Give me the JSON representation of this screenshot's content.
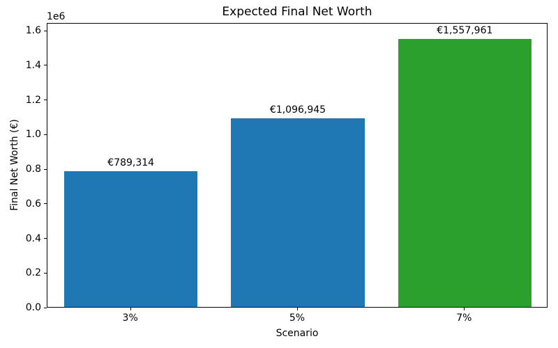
{
  "chart_data": {
    "type": "bar",
    "title": "Expected Final Net Worth",
    "xlabel": "Scenario",
    "ylabel": "Final Net Worth (€)",
    "y_offset_label": "1e6",
    "categories": [
      "3%",
      "5%",
      "7%"
    ],
    "values": [
      789314,
      1096945,
      1557961
    ],
    "bar_labels": [
      "€789,314",
      "€1,096,945",
      "€1,557,961"
    ],
    "bar_colors": [
      "#1f77b4",
      "#1f77b4",
      "#2ca02c"
    ],
    "ylim": [
      0,
      1645000
    ],
    "yticks": [
      0,
      200000,
      400000,
      600000,
      800000,
      1000000,
      1200000,
      1400000,
      1600000
    ],
    "ytick_labels": [
      "0.0",
      "0.2",
      "0.4",
      "0.6",
      "0.8",
      "1.0",
      "1.2",
      "1.4",
      "1.6"
    ],
    "grid": false,
    "legend": "none",
    "background_color": "#ffffff",
    "spine_color": "#000000"
  }
}
